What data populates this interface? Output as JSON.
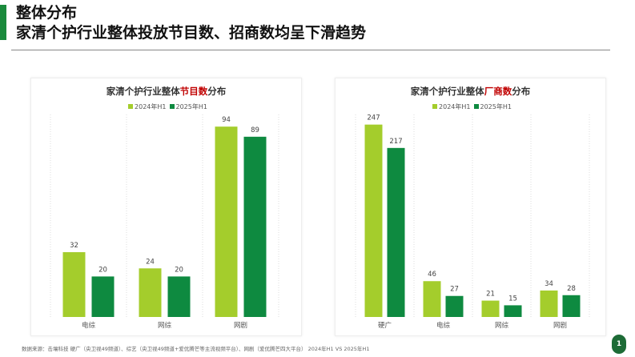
{
  "header": {
    "line1": "整体分布",
    "line2": "家清个护行业整体投放节目数、招商数均呈下滑趋势"
  },
  "colors": {
    "s2024": "#a4cd2c",
    "s2025": "#0e8a40",
    "accent": "#1a8a3c",
    "highlight": "#c00000"
  },
  "chart_data": [
    {
      "type": "bar",
      "title_pre": "家清个护行业整体",
      "title_hl": "节目数",
      "title_post": "分布",
      "categories": [
        "电综",
        "网综",
        "网剧"
      ],
      "series": [
        {
          "name": "2024年H1",
          "values": [
            32,
            24,
            94
          ]
        },
        {
          "name": "2025年H1",
          "values": [
            20,
            20,
            89
          ]
        }
      ],
      "ylim": [
        0,
        100
      ],
      "grid": false,
      "legend": "top"
    },
    {
      "type": "bar",
      "title_pre": "家清个护行业整体",
      "title_hl": "厂商数",
      "title_post": "分布",
      "categories": [
        "硬广",
        "电综",
        "网综",
        "网剧"
      ],
      "series": [
        {
          "name": "2024年H1",
          "values": [
            247,
            46,
            21,
            34
          ]
        },
        {
          "name": "2025年H1",
          "values": [
            217,
            27,
            15,
            28
          ]
        }
      ],
      "ylim": [
        0,
        260
      ],
      "grid": false,
      "legend": "top"
    }
  ],
  "footer": "数据来源：击壤科技 硬广（央卫视49频道）、综艺（央卫视49频道+爱优腾芒等主流视频平台）、网剧（爱优腾芒四大平台） 2024年H1 VS 2025年H1",
  "page_number": "1"
}
